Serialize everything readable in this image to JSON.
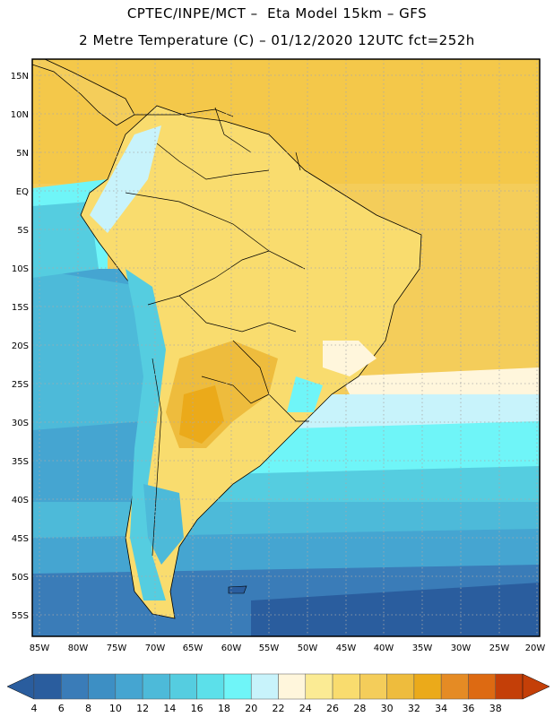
{
  "header": {
    "line1": "CPTEC/INPE/MCT –  Eta Model 15km – GFS",
    "line2": "2 Metre Temperature (C) – 01/12/2020 12UTC fct=252h"
  },
  "map": {
    "lat_labels": [
      "15N",
      "10N",
      "5N",
      "EQ",
      "5S",
      "10S",
      "15S",
      "20S",
      "25S",
      "30S",
      "35S",
      "40S",
      "45S",
      "50S",
      "55S"
    ],
    "lon_labels": [
      "85W",
      "80W",
      "75W",
      "70W",
      "65W",
      "60W",
      "55W",
      "50W",
      "45W",
      "40W",
      "35W",
      "30W",
      "25W",
      "20W"
    ],
    "extent": {
      "lon": [
        -86,
        -19
      ],
      "lat": [
        -58,
        16
      ]
    },
    "grid": true
  },
  "legend": {
    "labels": [
      "4",
      "6",
      "8",
      "10",
      "12",
      "14",
      "16",
      "18",
      "20",
      "22",
      "24",
      "26",
      "28",
      "30",
      "32",
      "34",
      "36",
      "38"
    ],
    "colors": [
      "#2a5d9e",
      "#3a7cb8",
      "#3d8fc4",
      "#45a5d1",
      "#4dbad9",
      "#55cde0",
      "#5ce0ea",
      "#6ff5f8",
      "#c8f3fb",
      "#fff6dc",
      "#fbeb94",
      "#f9dc6e",
      "#f4cd5a",
      "#eebc3d",
      "#ebaa1a",
      "#e58b24",
      "#dd6a12",
      "#c43f08"
    ]
  }
}
